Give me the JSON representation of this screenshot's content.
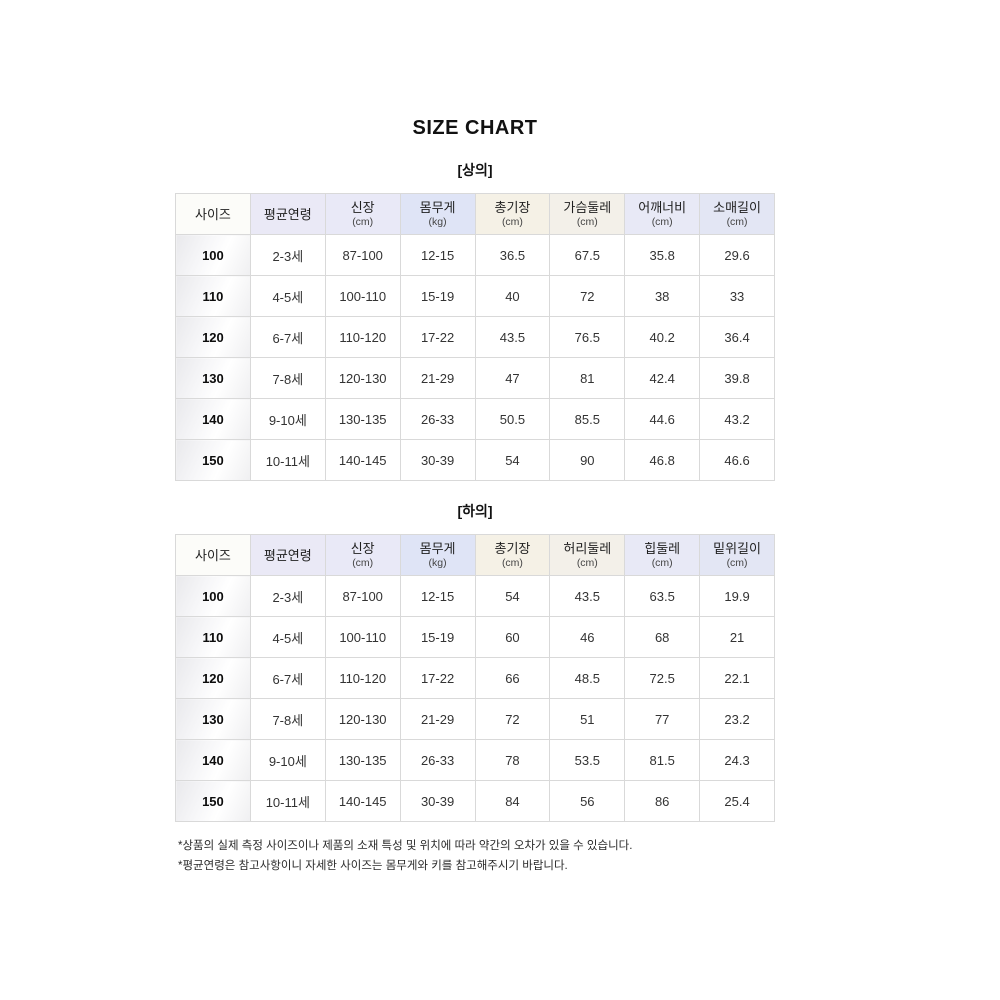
{
  "page": {
    "title": "SIZE CHART"
  },
  "colors": {
    "header_bg": [
      "#fcfcf9",
      "#eae9f6",
      "#e9e9f7",
      "#dfe4f6",
      "#f5f1e6",
      "#f3f0e9",
      "#e8e9f6",
      "#e3e6f4"
    ],
    "grid_line": "#d9d9d9",
    "size_column_gradient_gray": "#e9e9ec",
    "text": "#333333"
  },
  "tables": [
    {
      "section_label": "[상의]",
      "columns": [
        {
          "label": "사이즈",
          "unit": ""
        },
        {
          "label": "평균연령",
          "unit": ""
        },
        {
          "label": "신장",
          "unit": "(cm)"
        },
        {
          "label": "몸무게",
          "unit": "(kg)"
        },
        {
          "label": "총기장",
          "unit": "(cm)"
        },
        {
          "label": "가슴둘레",
          "unit": "(cm)"
        },
        {
          "label": "어깨너비",
          "unit": "(cm)"
        },
        {
          "label": "소매길이",
          "unit": "(cm)"
        }
      ],
      "rows": [
        [
          "100",
          "2-3세",
          "87-100",
          "12-15",
          "36.5",
          "67.5",
          "35.8",
          "29.6"
        ],
        [
          "110",
          "4-5세",
          "100-110",
          "15-19",
          "40",
          "72",
          "38",
          "33"
        ],
        [
          "120",
          "6-7세",
          "110-120",
          "17-22",
          "43.5",
          "76.5",
          "40.2",
          "36.4"
        ],
        [
          "130",
          "7-8세",
          "120-130",
          "21-29",
          "47",
          "81",
          "42.4",
          "39.8"
        ],
        [
          "140",
          "9-10세",
          "130-135",
          "26-33",
          "50.5",
          "85.5",
          "44.6",
          "43.2"
        ],
        [
          "150",
          "10-11세",
          "140-145",
          "30-39",
          "54",
          "90",
          "46.8",
          "46.6"
        ]
      ]
    },
    {
      "section_label": "[하의]",
      "columns": [
        {
          "label": "사이즈",
          "unit": ""
        },
        {
          "label": "평균연령",
          "unit": ""
        },
        {
          "label": "신장",
          "unit": "(cm)"
        },
        {
          "label": "몸무게",
          "unit": "(kg)"
        },
        {
          "label": "총기장",
          "unit": "(cm)"
        },
        {
          "label": "허리둘레",
          "unit": "(cm)"
        },
        {
          "label": "힙둘레",
          "unit": "(cm)"
        },
        {
          "label": "밑위길이",
          "unit": "(cm)"
        }
      ],
      "rows": [
        [
          "100",
          "2-3세",
          "87-100",
          "12-15",
          "54",
          "43.5",
          "63.5",
          "19.9"
        ],
        [
          "110",
          "4-5세",
          "100-110",
          "15-19",
          "60",
          "46",
          "68",
          "21"
        ],
        [
          "120",
          "6-7세",
          "110-120",
          "17-22",
          "66",
          "48.5",
          "72.5",
          "22.1"
        ],
        [
          "130",
          "7-8세",
          "120-130",
          "21-29",
          "72",
          "51",
          "77",
          "23.2"
        ],
        [
          "140",
          "9-10세",
          "130-135",
          "26-33",
          "78",
          "53.5",
          "81.5",
          "24.3"
        ],
        [
          "150",
          "10-11세",
          "140-145",
          "30-39",
          "84",
          "56",
          "86",
          "25.4"
        ]
      ]
    }
  ],
  "footnotes": [
    "*상품의 실제 측정 사이즈이나 제품의 소재 특성 및 위치에 따라 약간의 오차가 있을 수 있습니다.",
    "*평균연령은 참고사항이니 자세한 사이즈는 몸무게와 키를 참고해주시기 바랍니다."
  ]
}
